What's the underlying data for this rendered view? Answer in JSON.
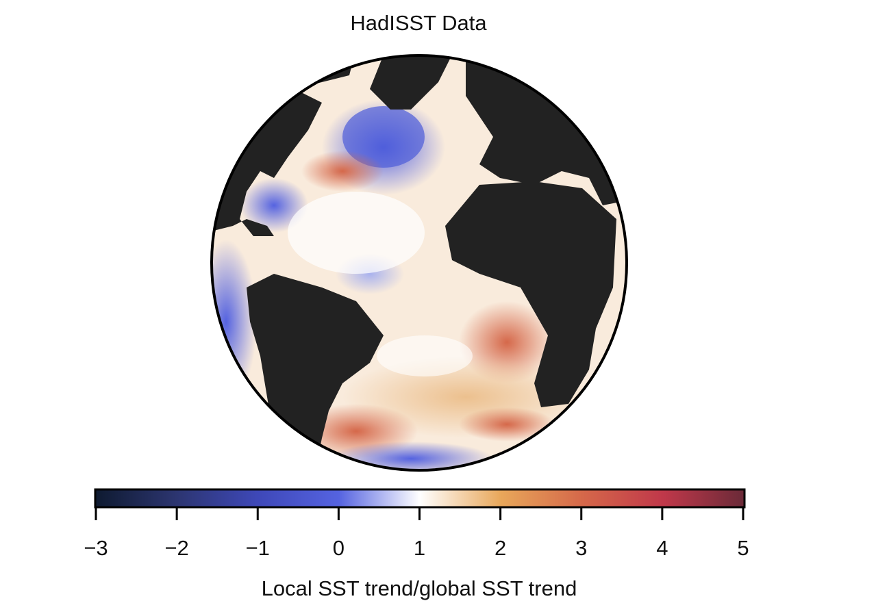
{
  "title": "HadISST Data",
  "colorbar": {
    "label": "Local SST trend/global SST trend",
    "min": -3,
    "max": 5,
    "ticks": [
      "−3",
      "−2",
      "−1",
      "0",
      "1",
      "2",
      "3",
      "4",
      "5"
    ],
    "colors": [
      "#0e1a30",
      "#2c3570",
      "#3e48b8",
      "#5563e0",
      "#ffffff",
      "#e8a75a",
      "#d5684a",
      "#c0384a",
      "#6a2a38"
    ]
  },
  "colors": {
    "land": "#222222",
    "outline": "#000000"
  }
}
